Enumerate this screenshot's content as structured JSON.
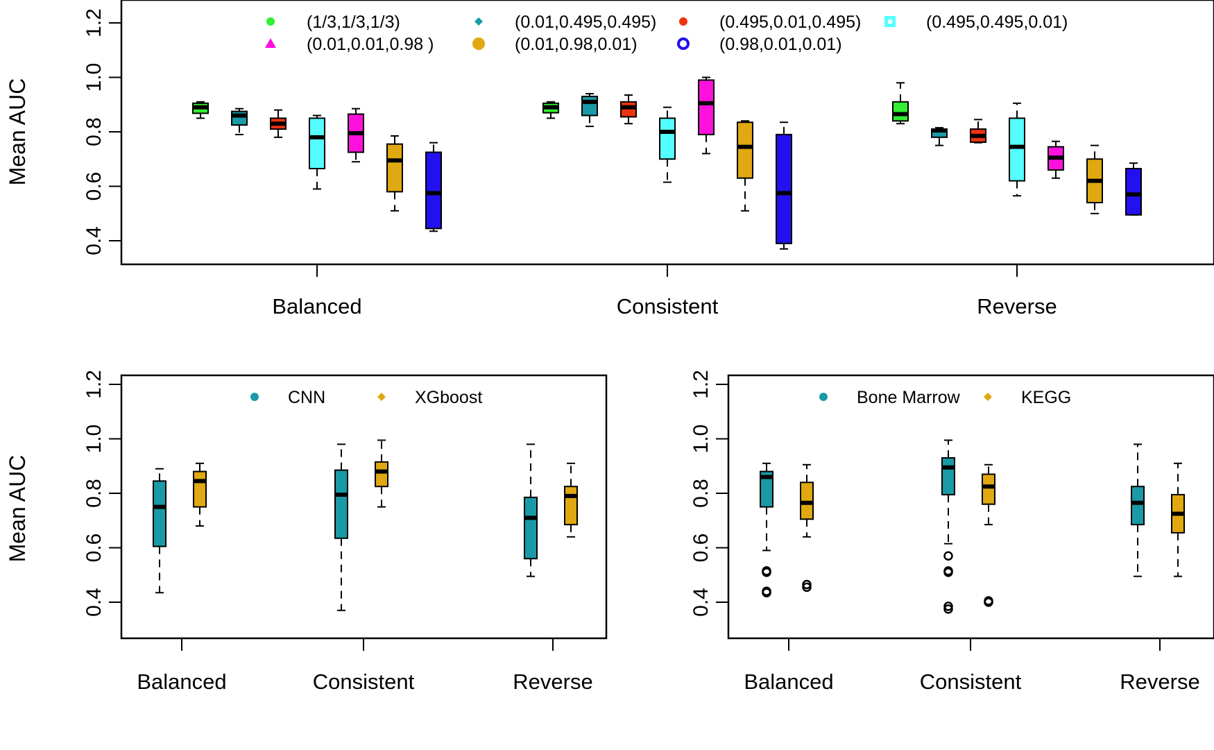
{
  "chart_data": [
    {
      "type": "boxplot",
      "ylabel": "Mean AUC",
      "xlabel": "",
      "ylim": [
        0.33,
        1.24
      ],
      "yticks": [
        "0.4",
        "0.6",
        "0.8",
        "1.0",
        "1.2"
      ],
      "categories": [
        "Balanced",
        "Consistent",
        "Reverse"
      ],
      "legend_position": "top",
      "series": [
        {
          "name": "(1/3,1/3,1/3)",
          "color": "#33ee33",
          "marker": "dot",
          "boxes": [
            [
              0.85,
              0.868,
              0.89,
              0.905,
              0.91
            ],
            [
              0.85,
              0.87,
              0.89,
              0.905,
              0.91
            ],
            [
              0.83,
              0.84,
              0.865,
              0.91,
              0.98
            ]
          ]
        },
        {
          "name": "(0.01,0.495,0.495)",
          "color": "#1a9aa6",
          "marker": "diamond",
          "boxes": [
            [
              0.79,
              0.825,
              0.86,
              0.875,
              0.885
            ],
            [
              0.82,
              0.86,
              0.91,
              0.93,
              0.94
            ],
            [
              0.75,
              0.78,
              0.805,
              0.81,
              0.815
            ]
          ]
        },
        {
          "name": "(0.495,0.01,0.495)",
          "color": "#ee3311",
          "marker": "dot",
          "boxes": [
            [
              0.78,
              0.81,
              0.83,
              0.85,
              0.88
            ],
            [
              0.83,
              0.855,
              0.89,
              0.91,
              0.935
            ],
            [
              0.76,
              0.762,
              0.785,
              0.81,
              0.845
            ]
          ]
        },
        {
          "name": "(0.495,0.495,0.01)",
          "color": "#55ffff",
          "marker": "square",
          "boxes": [
            [
              0.59,
              0.665,
              0.78,
              0.85,
              0.86
            ],
            [
              0.615,
              0.7,
              0.8,
              0.85,
              0.89
            ],
            [
              0.565,
              0.62,
              0.745,
              0.85,
              0.905
            ]
          ]
        },
        {
          "name": "(0.01,0.01,0.98 )",
          "color": "#ff11dd",
          "marker": "triangle",
          "boxes": [
            [
              0.69,
              0.725,
              0.795,
              0.865,
              0.885
            ],
            [
              0.72,
              0.79,
              0.905,
              0.99,
              1.0
            ],
            [
              0.63,
              0.66,
              0.705,
              0.745,
              0.765
            ]
          ]
        },
        {
          "name": "(0.01,0.98,0.01)",
          "color": "#e0a811",
          "marker": "bigdot",
          "boxes": [
            [
              0.51,
              0.58,
              0.695,
              0.755,
              0.785
            ],
            [
              0.51,
              0.63,
              0.745,
              0.835,
              0.84
            ],
            [
              0.5,
              0.54,
              0.62,
              0.7,
              0.75
            ]
          ]
        },
        {
          "name": "(0.98,0.01,0.01)",
          "color": "#2211ee",
          "marker": "ring",
          "boxes": [
            [
              0.435,
              0.445,
              0.575,
              0.725,
              0.76
            ],
            [
              0.37,
              0.39,
              0.575,
              0.79,
              0.835
            ],
            [
              0.495,
              0.495,
              0.57,
              0.665,
              0.685
            ]
          ]
        }
      ]
    },
    {
      "type": "boxplot",
      "ylabel": "Mean AUC",
      "xlabel": "",
      "ylim": [
        0.33,
        1.24
      ],
      "yticks": [
        "0.4",
        "0.6",
        "0.8",
        "1.0",
        "1.2"
      ],
      "categories": [
        "Balanced",
        "Consistent",
        "Reverse"
      ],
      "legend_position": "top",
      "series": [
        {
          "name": "CNN",
          "color": "#1a9aa6",
          "marker": "dot",
          "boxes": [
            [
              0.435,
              0.605,
              0.75,
              0.845,
              0.89
            ],
            [
              0.37,
              0.635,
              0.795,
              0.885,
              0.98
            ],
            [
              0.495,
              0.56,
              0.71,
              0.785,
              0.98
            ]
          ],
          "outliers": [
            [],
            [],
            []
          ]
        },
        {
          "name": "XGboost",
          "color": "#e0a811",
          "marker": "diamond",
          "boxes": [
            [
              0.68,
              0.75,
              0.845,
              0.88,
              0.91
            ],
            [
              0.75,
              0.825,
              0.88,
              0.915,
              0.995
            ],
            [
              0.64,
              0.685,
              0.79,
              0.825,
              0.91
            ]
          ],
          "outliers": [
            [],
            [],
            []
          ]
        }
      ]
    },
    {
      "type": "boxplot",
      "ylabel": "",
      "xlabel": "",
      "ylim": [
        0.33,
        1.24
      ],
      "yticks": [
        "0.4",
        "0.6",
        "0.8",
        "1.0",
        "1.2"
      ],
      "categories": [
        "Balanced",
        "Consistent",
        "Reverse"
      ],
      "legend_position": "top",
      "series": [
        {
          "name": "Bone Marrow",
          "color": "#1a9aa6",
          "marker": "dot",
          "boxes": [
            [
              0.59,
              0.75,
              0.86,
              0.88,
              0.91
            ],
            [
              0.615,
              0.795,
              0.895,
              0.93,
              0.995
            ],
            [
              0.495,
              0.685,
              0.765,
              0.825,
              0.98
            ]
          ],
          "outliers": [
            [
              0.51,
              0.515,
              0.435,
              0.44
            ],
            [
              0.57,
              0.51,
              0.515,
              0.375,
              0.385
            ],
            []
          ]
        },
        {
          "name": "KEGG",
          "color": "#e0a811",
          "marker": "diamond",
          "boxes": [
            [
              0.64,
              0.705,
              0.765,
              0.84,
              0.905
            ],
            [
              0.685,
              0.76,
              0.825,
              0.87,
              0.905
            ],
            [
              0.495,
              0.655,
              0.725,
              0.795,
              0.91
            ]
          ],
          "outliers": [
            [
              0.455,
              0.465
            ],
            [
              0.4,
              0.405
            ],
            []
          ]
        }
      ]
    }
  ]
}
